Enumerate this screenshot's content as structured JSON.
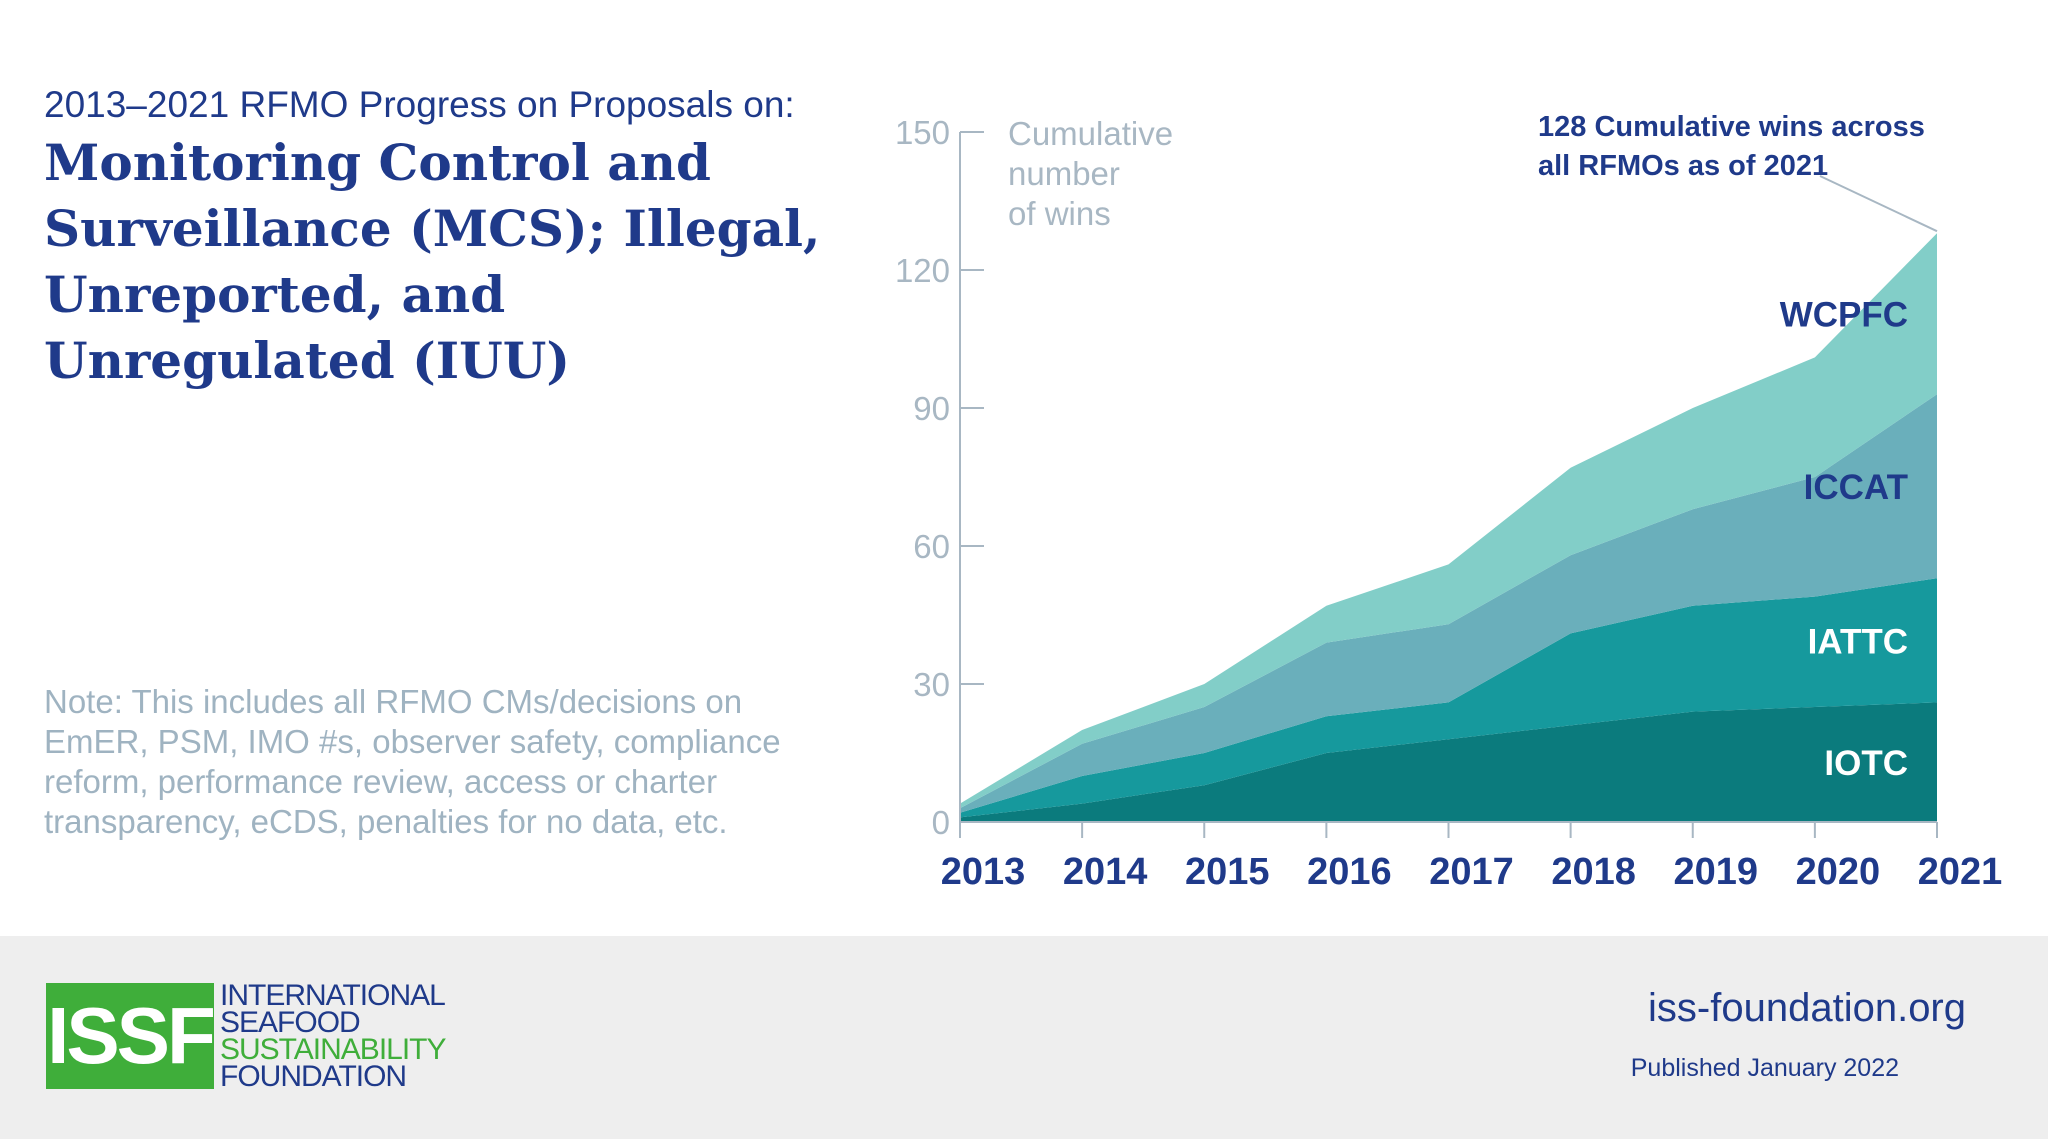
{
  "header": {
    "supertitle": "2013–2021 RFMO Progress on Proposals on:",
    "title": "Monitoring Control and Surveillance (MCS); Illegal, Unreported, and Unregulated (IUU)"
  },
  "note": "Note: This includes all RFMO CMs/decisions on EmER, PSM, IMO #s, observer safety, compliance reform, performance review, access or charter transparency, eCDS, penalties for no data, etc.",
  "chart_data": {
    "type": "area",
    "stacked": true,
    "x": [
      2013,
      2014,
      2015,
      2016,
      2017,
      2018,
      2019,
      2020,
      2021
    ],
    "x_tick_labels": [
      "2013",
      "2014",
      "2015",
      "2016",
      "2017",
      "2018",
      "2019",
      "2020",
      "2021"
    ],
    "ylabel_lines": [
      "Cumulative",
      "number",
      "of wins"
    ],
    "ylim": [
      0,
      150
    ],
    "y_ticks": [
      0,
      30,
      60,
      90,
      120,
      150
    ],
    "y_tick_labels": [
      "0",
      "30",
      "60",
      "90",
      "120",
      "150"
    ],
    "series": [
      {
        "name": "IOTC",
        "color": "#0b7b7d",
        "values": [
          1,
          4,
          8,
          15,
          18,
          21,
          24,
          25,
          26
        ]
      },
      {
        "name": "IATTC",
        "color": "#16999d",
        "values": [
          1,
          6,
          7,
          8,
          8,
          20,
          23,
          24,
          27
        ]
      },
      {
        "name": "ICCAT",
        "color": "#6aafbb",
        "values": [
          1,
          7,
          10,
          16,
          17,
          17,
          21,
          26,
          40
        ]
      },
      {
        "name": "WCPFC",
        "color": "#82cec8",
        "values": [
          1,
          3,
          5,
          8,
          13,
          19,
          22,
          26,
          35
        ]
      }
    ],
    "annotation_lines": [
      "128 Cumulative wins across",
      "all RFMOs as of 2021"
    ],
    "colors": {
      "axis": "#a8b7c3",
      "tick_text": "#a8b7c3",
      "year_text": "#1f3a8a",
      "label_dark": "#1f3a8a",
      "label_light": "#ffffff"
    }
  },
  "footer": {
    "logo_text": "ISSF",
    "org_name_lines": [
      "INTERNATIONAL",
      "SEAFOOD",
      "SUSTAINABILITY",
      "FOUNDATION"
    ],
    "website": "iss-foundation.org",
    "published": "Published January 2022"
  }
}
